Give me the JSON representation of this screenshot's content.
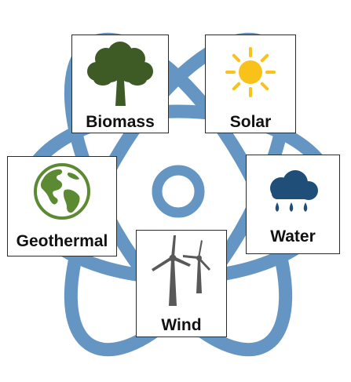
{
  "colors": {
    "atom": "#6596c3",
    "tree": "#3e5b25",
    "sun": "#f9c21b",
    "globe": "#5c8a33",
    "cloud": "#1f4e79",
    "turbine": "#595959",
    "text": "#111111"
  },
  "sources": {
    "biomass": {
      "label": "Biomass",
      "icon": "tree-icon"
    },
    "solar": {
      "label": "Solar",
      "icon": "sun-icon"
    },
    "geothermal": {
      "label": "Geothermal",
      "icon": "globe-icon"
    },
    "water": {
      "label": "Water",
      "icon": "rain-cloud-icon"
    },
    "wind": {
      "label": "Wind",
      "icon": "wind-turbine-icon"
    }
  }
}
